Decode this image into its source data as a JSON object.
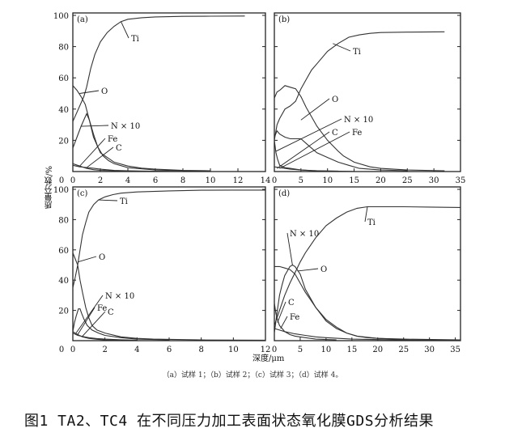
{
  "chart_data": [
    {
      "type": "line",
      "panel": "(a)",
      "xlim": [
        0,
        14
      ],
      "ylim": [
        0,
        100
      ],
      "xticks": [
        0,
        2,
        4,
        6,
        8,
        10,
        12,
        14
      ],
      "yticks": [
        0,
        20,
        40,
        60,
        80,
        100
      ],
      "series": [
        {
          "name": "Ti",
          "x": [
            0,
            0.3,
            0.6,
            0.8,
            1,
            1.3,
            1.6,
            2,
            2.5,
            3,
            3.5,
            4,
            5,
            6,
            8,
            10,
            12.5
          ],
          "y": [
            32,
            38,
            44,
            48,
            54,
            66,
            75,
            83,
            89,
            93,
            96,
            97.5,
            98.5,
            99,
            99.4,
            99.5,
            99.6
          ]
        },
        {
          "name": "O",
          "x": [
            0,
            0.3,
            0.6,
            0.9,
            1.2,
            1.5,
            2,
            2.5,
            3,
            4,
            5,
            6,
            8,
            10
          ],
          "y": [
            55,
            52,
            48,
            43,
            33,
            22,
            12,
            9,
            6,
            3.5,
            2.2,
            1.5,
            0.8,
            0.5
          ]
        },
        {
          "name": "N × 10",
          "x": [
            0,
            0.3,
            0.6,
            0.9,
            1,
            1.2,
            1.5,
            1.8,
            2.2,
            2.6,
            3,
            4,
            6,
            8,
            10
          ],
          "y": [
            15,
            22,
            29,
            35,
            37,
            33,
            24,
            16,
            10,
            7,
            5,
            2.5,
            1,
            0.5,
            0.3
          ]
        },
        {
          "name": "Fe",
          "x": [
            0,
            0.5,
            1,
            1.5,
            2,
            3,
            4,
            6,
            8
          ],
          "y": [
            5,
            3.5,
            2,
            1.2,
            0.8,
            0.5,
            0.3,
            0.2,
            0.1
          ]
        },
        {
          "name": "C",
          "x": [
            0,
            0.5,
            1,
            1.5,
            2,
            3,
            4,
            5,
            7
          ],
          "y": [
            4,
            3,
            2.6,
            2.1,
            1.5,
            0.8,
            0.5,
            0.3,
            0.1
          ]
        }
      ]
    },
    {
      "type": "line",
      "panel": "(b)",
      "xlim": [
        0,
        35
      ],
      "ylim": [
        0,
        100
      ],
      "xticks": [
        0,
        5,
        10,
        15,
        20,
        25,
        30,
        35
      ],
      "yticks": [
        0,
        20,
        40,
        60,
        80,
        100
      ],
      "series": [
        {
          "name": "Ti",
          "x": [
            0,
            0.5,
            1,
            2,
            3,
            4,
            5,
            6,
            7,
            8,
            10,
            12,
            14,
            16,
            18,
            20,
            25,
            32
          ],
          "y": [
            20,
            30,
            34,
            40,
            42,
            45,
            53,
            59,
            65,
            69,
            77,
            82,
            86,
            87.5,
            88.5,
            89,
            89.3,
            89.5
          ]
        },
        {
          "name": "O",
          "x": [
            0,
            0.5,
            1,
            2,
            3,
            4,
            5,
            6,
            7,
            8,
            10,
            12,
            13,
            15,
            18,
            20,
            25,
            32
          ],
          "y": [
            47,
            51,
            52,
            55,
            54,
            53,
            48,
            41,
            35,
            29,
            20,
            13,
            10,
            6,
            3,
            2,
            1,
            0.5
          ]
        },
        {
          "name": "N × 10",
          "x": [
            0,
            0.5,
            1,
            2,
            3,
            4,
            5,
            6,
            7,
            8,
            10,
            12,
            14,
            16,
            18,
            20,
            25
          ],
          "y": [
            22,
            26,
            24,
            22,
            21,
            21,
            21,
            18,
            15,
            12,
            9,
            6,
            4,
            2,
            1.5,
            1,
            0.5
          ]
        },
        {
          "name": "C",
          "x": [
            0,
            0.3,
            0.6,
            1,
            2,
            3,
            5,
            8,
            12
          ],
          "y": [
            20,
            12,
            8,
            4,
            2.5,
            2,
            1,
            0.5,
            0.3
          ]
        },
        {
          "name": "Fe",
          "x": [
            0,
            1,
            2,
            3,
            5,
            7,
            10,
            15
          ],
          "y": [
            3,
            2.5,
            2,
            1.5,
            1,
            0.6,
            0.3,
            0.1
          ]
        }
      ]
    },
    {
      "type": "line",
      "panel": "(c)",
      "xlim": [
        0,
        12
      ],
      "ylim": [
        0,
        100
      ],
      "xticks": [
        0,
        2,
        4,
        6,
        8,
        10,
        12
      ],
      "yticks": [
        0,
        20,
        40,
        60,
        80,
        100
      ],
      "series": [
        {
          "name": "Ti",
          "x": [
            0,
            0.15,
            0.3,
            0.45,
            0.6,
            0.8,
            1,
            1.3,
            1.6,
            2,
            2.5,
            3,
            4,
            6,
            8,
            10,
            12
          ],
          "y": [
            35,
            42,
            50,
            60,
            70,
            78,
            85,
            90,
            93,
            95,
            96.5,
            97.5,
            98.3,
            99,
            99.4,
            99.5,
            99.5
          ]
        },
        {
          "name": "O",
          "x": [
            0,
            0.15,
            0.3,
            0.45,
            0.6,
            0.8,
            1,
            1.2,
            1.5,
            2,
            3,
            4,
            5,
            8,
            12
          ],
          "y": [
            58,
            54,
            50,
            40,
            32,
            22,
            15,
            10,
            7,
            5,
            2.5,
            1.5,
            1,
            0.5,
            0.3
          ]
        },
        {
          "name": "N × 10",
          "x": [
            0,
            0.1,
            0.2,
            0.35,
            0.45,
            0.55,
            0.7,
            0.9,
            1.2,
            1.6,
            2,
            3,
            4,
            6
          ],
          "y": [
            6,
            12,
            16,
            21,
            21,
            18,
            14,
            10,
            7,
            5,
            3.5,
            2,
            1,
            0.5
          ]
        },
        {
          "name": "Fe",
          "x": [
            0,
            0.3,
            0.6,
            1,
            1.5,
            2,
            3
          ],
          "y": [
            6,
            4,
            2.5,
            1.5,
            0.9,
            0.5,
            0.3
          ]
        },
        {
          "name": "C",
          "x": [
            0,
            0.3,
            0.6,
            1,
            1.5,
            2,
            3,
            4
          ],
          "y": [
            5,
            3.5,
            2.8,
            2,
            1.4,
            1,
            0.6,
            0.3
          ]
        }
      ]
    },
    {
      "type": "line",
      "panel": "(d)",
      "xlim": [
        0,
        36
      ],
      "ylim": [
        0,
        100
      ],
      "xticks": [
        0,
        5,
        10,
        15,
        20,
        25,
        30,
        35
      ],
      "yticks": [
        0,
        20,
        40,
        60,
        80,
        100
      ],
      "series": [
        {
          "name": "Ti",
          "x": [
            0,
            0.5,
            1,
            2,
            3,
            4,
            5,
            6,
            8,
            10,
            12,
            14,
            16,
            18,
            20,
            25,
            30,
            36
          ],
          "y": [
            10,
            15,
            20,
            30,
            38,
            45,
            52,
            58,
            68,
            76,
            81,
            85,
            87.5,
            88.5,
            88.5,
            88.5,
            88.3,
            88
          ]
        },
        {
          "name": "O",
          "x": [
            0,
            1,
            2,
            3,
            4,
            5,
            6,
            7,
            8,
            10,
            12,
            14,
            16,
            18,
            20,
            25,
            36
          ],
          "y": [
            49,
            49,
            48,
            47,
            44,
            38,
            32,
            27,
            22,
            14,
            9,
            5,
            3,
            2,
            1.5,
            1,
            0.5
          ]
        },
        {
          "name": "N × 10",
          "x": [
            0,
            0.5,
            1,
            1.5,
            2,
            3,
            3.5,
            4,
            5,
            6,
            7,
            8,
            10,
            12,
            14,
            16,
            20,
            25
          ],
          "y": [
            5,
            18,
            30,
            37,
            43,
            49,
            50,
            49,
            44,
            34,
            28,
            22,
            13,
            8,
            5,
            3,
            1.5,
            0.8
          ]
        },
        {
          "name": "C",
          "x": [
            0,
            0.3,
            0.6,
            1,
            1.5,
            2,
            3,
            4,
            6,
            8,
            12
          ],
          "y": [
            25,
            18,
            14,
            10,
            8,
            6,
            4,
            3,
            2,
            1,
            0.5
          ]
        },
        {
          "name": "Fe",
          "x": [
            0,
            1,
            2,
            4,
            6,
            8,
            10,
            15,
            20,
            25,
            36
          ],
          "y": [
            8,
            7,
            6,
            4.5,
            3.5,
            2.5,
            2,
            1,
            0.7,
            0.5,
            0.4
          ]
        }
      ]
    }
  ],
  "axes": {
    "ylabel": "质量分数/%",
    "xlabel": "深度/μm"
  },
  "caption": {
    "subcaption": "（a）试样 1；（b）试样 2；（c）试样 3；（d）试样 4。",
    "title": "图1  TA2、TC4 在不同压力加工表面状态氧化膜GDS分析结果"
  }
}
